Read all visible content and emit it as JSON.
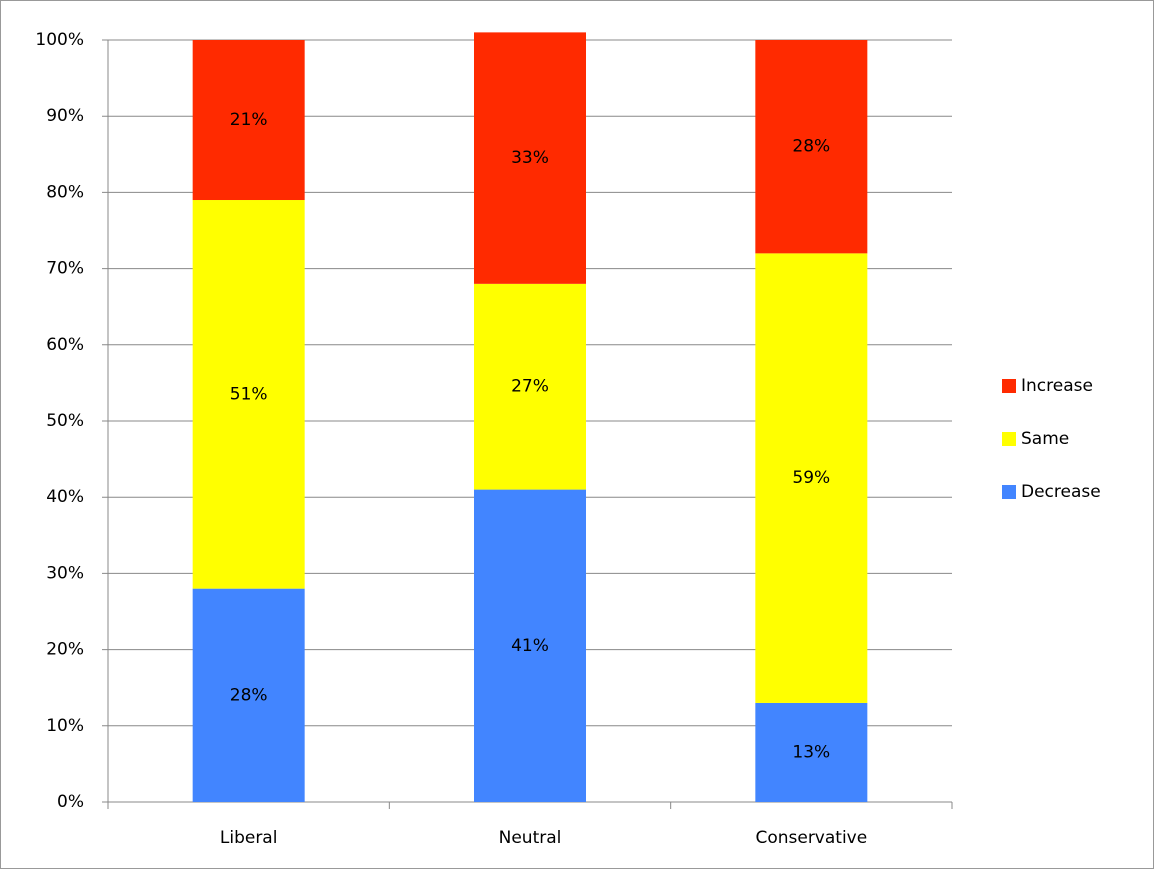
{
  "chart_data": {
    "type": "stacked_bar",
    "categories": [
      "Liberal",
      "Neutral",
      "Conservative"
    ],
    "series": [
      {
        "name": "Decrease",
        "color": "#4285ff",
        "values": [
          28,
          41,
          13
        ],
        "value_labels": [
          "28%",
          "41%",
          "13%"
        ]
      },
      {
        "name": "Same",
        "color": "#ffff00",
        "values": [
          51,
          27,
          59
        ],
        "value_labels": [
          "51%",
          "27%",
          "59%"
        ]
      },
      {
        "name": "Increase",
        "color": "#ff2a00",
        "values": [
          21,
          33,
          28
        ],
        "value_labels": [
          "21%",
          "33%",
          "28%"
        ]
      }
    ],
    "ylim": [
      0,
      100
    ],
    "yticks": [
      {
        "value": 0,
        "label": "0%"
      },
      {
        "value": 10,
        "label": "10%"
      },
      {
        "value": 20,
        "label": "20%"
      },
      {
        "value": 30,
        "label": "30%"
      },
      {
        "value": 40,
        "label": "40%"
      },
      {
        "value": 50,
        "label": "50%"
      },
      {
        "value": 60,
        "label": "60%"
      },
      {
        "value": 70,
        "label": "70%"
      },
      {
        "value": 80,
        "label": "80%"
      },
      {
        "value": 90,
        "label": "90%"
      },
      {
        "value": 100,
        "label": "100%"
      }
    ],
    "grid": true,
    "legend": "right"
  }
}
